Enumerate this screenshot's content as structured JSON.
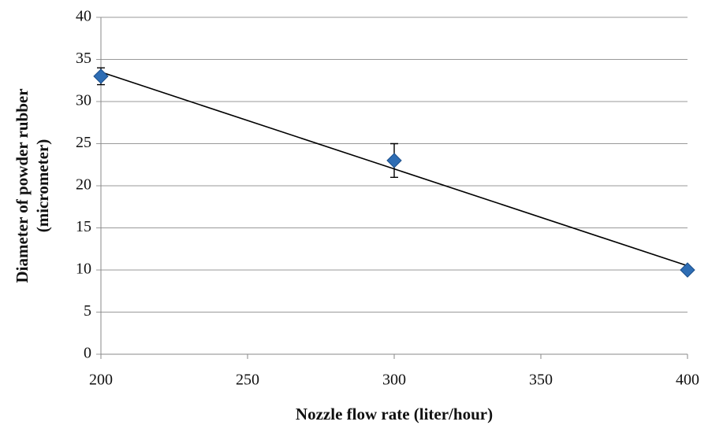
{
  "chart_data": {
    "type": "scatter",
    "xlabel": "Nozzle flow rate (liter/hour)",
    "ylabel": [
      "Diameter of powder rubber",
      "(micrometer)"
    ],
    "series": [
      {
        "color": "#2e6db4",
        "x": [
          200,
          300,
          400
        ],
        "values": [
          33,
          23,
          10
        ],
        "errors": [
          1,
          2,
          0.3
        ]
      }
    ],
    "trendline": {
      "x": [
        200,
        400
      ],
      "values": [
        33.5,
        10.5
      ],
      "color": "#000000"
    },
    "xlim": [
      200,
      400
    ],
    "xticks": [
      200,
      250,
      300,
      350,
      400
    ],
    "ylim": [
      0,
      40
    ],
    "yticks": [
      0,
      5,
      10,
      15,
      20,
      25,
      30,
      35,
      40
    ],
    "grid": true
  }
}
